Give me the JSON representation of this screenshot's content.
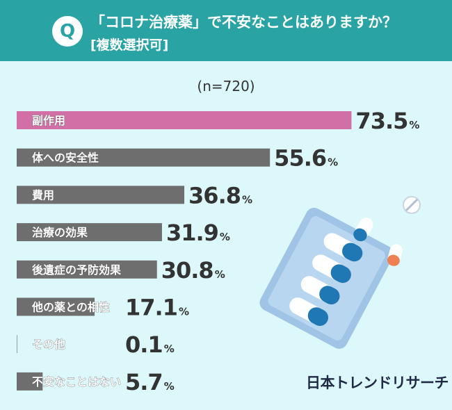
{
  "header": {
    "badge": "Q",
    "question": "「コロナ治療薬」で不安なことはありますか？",
    "note": "[複数選択可]"
  },
  "sample_size": "(n=720)",
  "brand": "日本トレンドリサーチ",
  "colors": {
    "header_bg": "#29a3a3",
    "page_bg": "#dcf8fb",
    "highlight_bar": "#d16fa6",
    "bar": "#6e6e6e",
    "value_text": "#333333"
  },
  "chart_data": {
    "type": "bar",
    "orientation": "horizontal",
    "categories": [
      "副作用",
      "体への安全性",
      "費用",
      "治療の効果",
      "後遺症の予防効果",
      "他の薬との相性",
      "その他",
      "不安なことはない"
    ],
    "values": [
      73.5,
      55.6,
      36.8,
      31.9,
      30.8,
      17.1,
      0.1,
      5.7
    ],
    "value_labels": [
      "73.5",
      "55.6",
      "36.8",
      "31.9",
      "30.8",
      "17.1",
      "0.1",
      "5.7"
    ],
    "unit": "%",
    "highlight_index": 0
  }
}
